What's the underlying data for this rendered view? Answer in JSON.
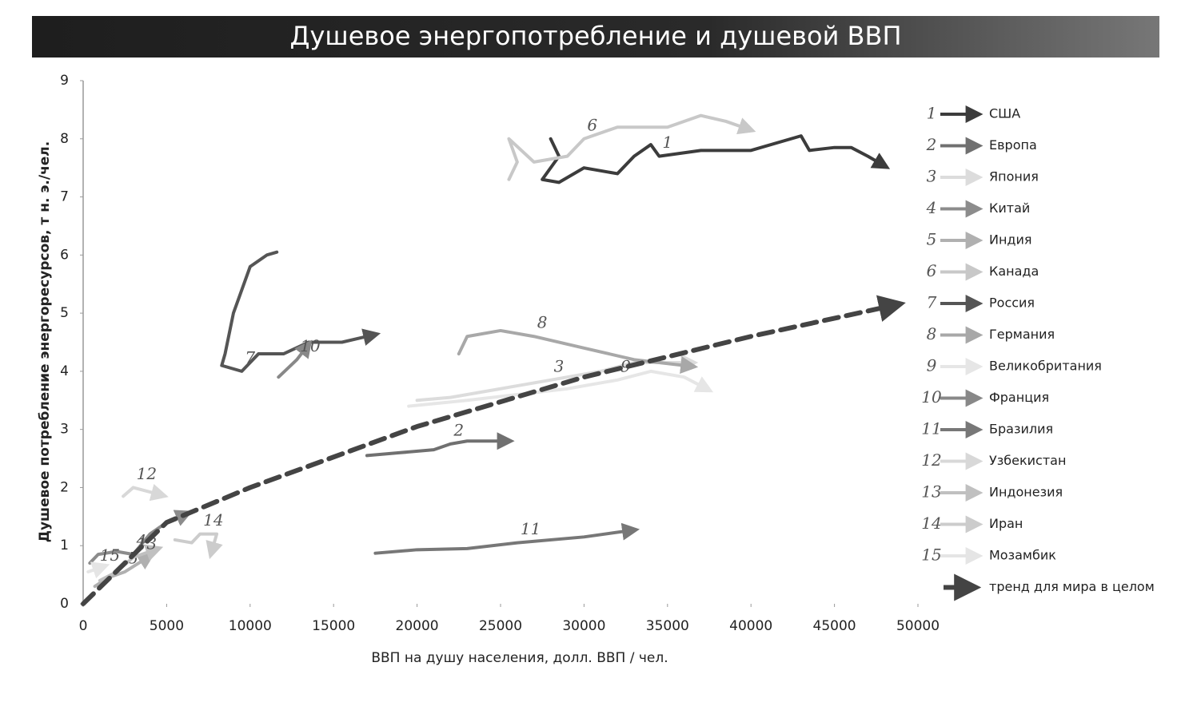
{
  "chart_data": {
    "type": "line",
    "title": "Душевое энергопотребление и душевой ВВП",
    "x_label": "ВВП на душу населения, долл. ВВП / чел.",
    "y_label": "Душевое потребление энергоресурсов, т н. э./чел.",
    "xlim": [
      0,
      50000
    ],
    "xticks": [
      0,
      5000,
      10000,
      15000,
      20000,
      25000,
      30000,
      35000,
      40000,
      45000,
      50000
    ],
    "ylim": [
      0,
      9
    ],
    "yticks": [
      0,
      1,
      2,
      3,
      4,
      5,
      6,
      7,
      8,
      9
    ],
    "series": [
      {
        "name": "США",
        "label": "1",
        "color": "#3c3c3c",
        "x": [
          28000,
          28500,
          27500,
          28500,
          30000,
          32000,
          33000,
          34000,
          34500,
          37000,
          40000,
          43000,
          43500,
          45000,
          46000,
          47000,
          47600
        ],
        "values": [
          8.0,
          7.7,
          7.3,
          7.25,
          7.5,
          7.4,
          7.7,
          7.9,
          7.7,
          7.8,
          7.8,
          8.05,
          7.8,
          7.85,
          7.85,
          7.7,
          7.6
        ]
      },
      {
        "name": "Европа",
        "label": "2",
        "color": "#707070",
        "x": [
          17000,
          19000,
          21000,
          22000,
          23000,
          25000
        ],
        "values": [
          2.55,
          2.6,
          2.65,
          2.75,
          2.8,
          2.8
        ]
      },
      {
        "name": "Япония",
        "label": "3",
        "color": "#dcdcdc",
        "x": [
          20000,
          22000,
          25000,
          28000,
          31000,
          33000,
          36000
        ],
        "values": [
          3.5,
          3.55,
          3.7,
          3.85,
          4.0,
          4.15,
          4.15
        ]
      },
      {
        "name": "Китай",
        "label": "4",
        "color": "#8c8c8c",
        "x": [
          400,
          900,
          2000,
          3000,
          4000,
          5000,
          5800
        ],
        "values": [
          0.7,
          0.85,
          0.9,
          0.85,
          1.2,
          1.4,
          1.5
        ]
      },
      {
        "name": "Индия",
        "label": "5",
        "color": "#b0b0b0",
        "x": [
          700,
          1500,
          2500,
          3600
        ],
        "values": [
          0.3,
          0.45,
          0.55,
          0.75
        ]
      },
      {
        "name": "Канада",
        "label": "6",
        "color": "#c8c8c8",
        "x": [
          25500,
          26000,
          25500,
          27000,
          29000,
          30000,
          32000,
          35000,
          37000,
          38500,
          39500
        ],
        "values": [
          7.3,
          7.6,
          8.0,
          7.6,
          7.7,
          8.0,
          8.2,
          8.2,
          8.4,
          8.3,
          8.2
        ]
      },
      {
        "name": "Россия",
        "label": "7",
        "color": "#555555",
        "x": [
          11600,
          11000,
          10000,
          9000,
          8500,
          8300,
          9500,
          10500,
          12000,
          13500,
          15500,
          17000
        ],
        "values": [
          6.05,
          6.0,
          5.8,
          5.0,
          4.3,
          4.1,
          4.0,
          4.3,
          4.3,
          4.5,
          4.5,
          4.6
        ]
      },
      {
        "name": "Германия",
        "label": "8",
        "color": "#a8a8a8",
        "x": [
          22500,
          23000,
          25000,
          27000,
          30000,
          33000,
          36000
        ],
        "values": [
          4.3,
          4.6,
          4.7,
          4.6,
          4.4,
          4.2,
          4.1
        ]
      },
      {
        "name": "Великобритания",
        "label": "9",
        "color": "#e6e6e6",
        "x": [
          19500,
          23000,
          26000,
          29000,
          32000,
          34000,
          36000,
          37000
        ],
        "values": [
          3.4,
          3.5,
          3.6,
          3.7,
          3.85,
          4.0,
          3.9,
          3.75
        ]
      },
      {
        "name": "Франция",
        "label": "10",
        "color": "#888888",
        "x": [
          11700,
          12800,
          13200
        ],
        "values": [
          3.9,
          4.2,
          4.35
        ]
      },
      {
        "name": "Бразилия",
        "label": "11",
        "color": "#777777",
        "x": [
          17500,
          20000,
          23000,
          26000,
          30000,
          32500
        ],
        "values": [
          0.87,
          0.93,
          0.95,
          1.05,
          1.15,
          1.25
        ]
      },
      {
        "name": "Узбекистан",
        "label": "12",
        "color": "#d8d8d8",
        "x": [
          2400,
          3000,
          4300
        ],
        "values": [
          1.85,
          2.0,
          1.9
        ]
      },
      {
        "name": "Индонезия",
        "label": "13",
        "color": "#c0c0c0",
        "x": [
          1000,
          2000,
          3000,
          4000
        ],
        "values": [
          0.4,
          0.55,
          0.8,
          0.9
        ]
      },
      {
        "name": "Иран",
        "label": "14",
        "color": "#cccccc",
        "x": [
          5500,
          6500,
          7000,
          8000,
          7800
        ],
        "values": [
          1.1,
          1.05,
          1.2,
          1.2,
          1.0
        ]
      },
      {
        "name": "Мозамбик",
        "label": "15",
        "color": "#e5e5e5",
        "x": [
          300,
          800
        ],
        "values": [
          0.55,
          0.6
        ]
      },
      {
        "name": "тренд для мира в целом",
        "color": "#444444",
        "dashed": true,
        "x": [
          0,
          5000,
          10000,
          20000,
          30000,
          40000,
          48000
        ],
        "values": [
          0,
          1.4,
          2.0,
          3.05,
          3.9,
          4.6,
          5.1
        ]
      }
    ]
  }
}
